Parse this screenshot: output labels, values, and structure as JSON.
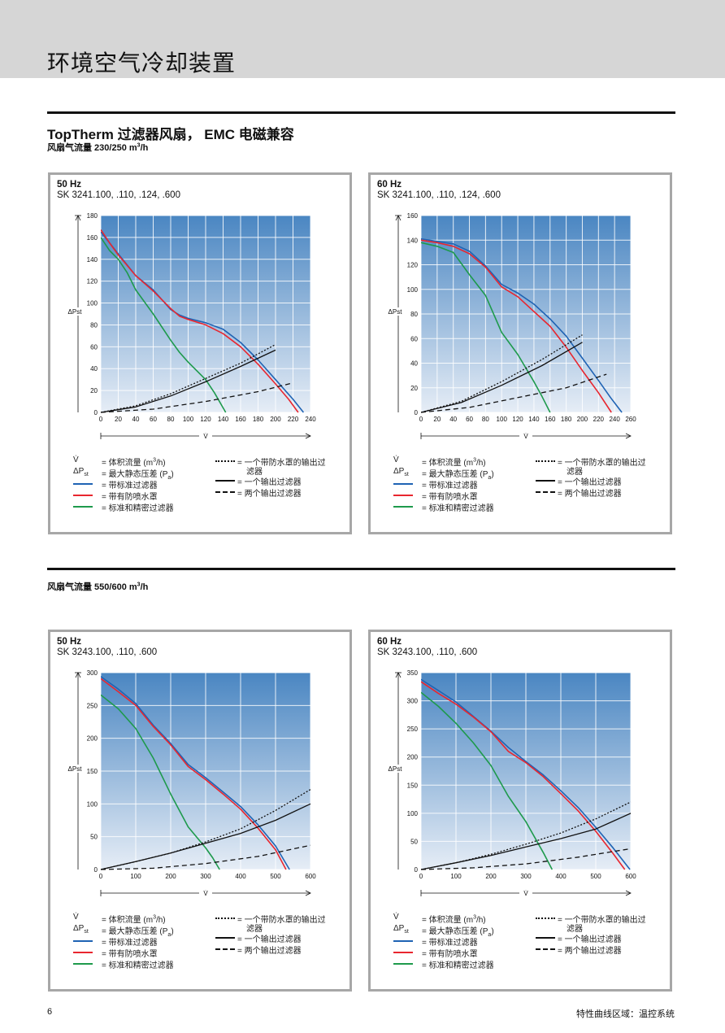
{
  "page": {
    "header_title": "环境空气冷却装置",
    "section1_title": "TopTherm 过滤器风扇， EMC 电磁兼容",
    "section1_sub_prefix": "风扇气流量 230/250 m",
    "section1_sub_sup": "3",
    "section1_sub_suffix": "/h",
    "section2_sub_prefix": "风扇气流量 550/600 m",
    "section2_sub_sup": "3",
    "section2_sub_suffix": "/h",
    "page_number": "6",
    "footer": "特性曲线区域：温控系统"
  },
  "legend": {
    "v_sym": "V̇",
    "v_desc_prefix": "= 体积流量 (m",
    "v_desc_sup": "3",
    "v_desc_suffix": "/h)",
    "dp_sym_prefix": "ΔP",
    "dp_sym_sub": "st",
    "dp_desc_prefix": "= 最大静态压差 (P",
    "dp_desc_sub": "a",
    "dp_desc_suffix": ")",
    "blue": "= 带标准过滤器",
    "red": "= 带有防喷水罩",
    "green": "= 标准和精密过滤器",
    "dotted_line1": "= 一个带防水罩的输出过",
    "dotted_line2": "滤器",
    "solid": "= 一个输出过滤器",
    "dashed": "= 两个输出过滤器"
  },
  "colors": {
    "blue": "#1f63b4",
    "red": "#e8262f",
    "green": "#1e9a4c",
    "black": "#111111",
    "plot_top": "#4a86c2",
    "plot_bottom": "#e6edf6"
  },
  "chart_data": [
    {
      "type": "line",
      "hz": "50 Hz",
      "model": "SK 3241.100, .110, .124, .600",
      "xlabel": "V̇",
      "ylabel": "ΔPst",
      "xlim": [
        0,
        240
      ],
      "ylim": [
        0,
        180
      ],
      "xticks": [
        0,
        20,
        40,
        60,
        80,
        100,
        120,
        140,
        160,
        180,
        200,
        220,
        240
      ],
      "yticks": [
        0,
        20,
        40,
        60,
        80,
        100,
        120,
        140,
        160,
        180
      ],
      "grid": true,
      "series": [
        {
          "color": "blue",
          "style": "solid",
          "x": [
            0,
            10,
            20,
            40,
            60,
            80,
            90,
            100,
            120,
            140,
            160,
            180,
            200,
            220,
            232
          ],
          "y": [
            165,
            155,
            145,
            125,
            112,
            94,
            89,
            86,
            82,
            76,
            64,
            48,
            30,
            12,
            0
          ]
        },
        {
          "color": "red",
          "style": "solid",
          "x": [
            0,
            10,
            20,
            40,
            60,
            80,
            90,
            100,
            120,
            140,
            160,
            180,
            200,
            215,
            226
          ],
          "y": [
            167,
            155,
            144,
            125,
            111,
            95,
            88,
            85,
            80,
            72,
            60,
            44,
            26,
            12,
            0
          ]
        },
        {
          "color": "green",
          "style": "solid",
          "x": [
            0,
            10,
            20,
            30,
            40,
            60,
            80,
            90,
            100,
            120,
            130,
            143
          ],
          "y": [
            160,
            148,
            140,
            128,
            112,
            90,
            66,
            55,
            46,
            30,
            18,
            0
          ]
        },
        {
          "color": "black",
          "style": "dotted",
          "x": [
            0,
            40,
            80,
            120,
            160,
            200
          ],
          "y": [
            0,
            6,
            17,
            31,
            45,
            62
          ]
        },
        {
          "color": "black",
          "style": "solid",
          "x": [
            0,
            40,
            80,
            120,
            160,
            200
          ],
          "y": [
            0,
            5,
            15,
            28,
            42,
            57
          ]
        },
        {
          "color": "black",
          "style": "dashed",
          "x": [
            0,
            60,
            120,
            180,
            220
          ],
          "y": [
            0,
            3,
            10,
            19,
            27
          ]
        }
      ]
    },
    {
      "type": "line",
      "hz": "60 Hz",
      "model": "SK 3241.100, .110, .124, .600",
      "xlabel": "V̇",
      "ylabel": "ΔPst",
      "xlim": [
        0,
        260
      ],
      "ylim": [
        0,
        160
      ],
      "xticks": [
        0,
        20,
        40,
        60,
        80,
        100,
        120,
        140,
        160,
        180,
        200,
        220,
        240,
        260
      ],
      "yticks": [
        0,
        20,
        40,
        60,
        80,
        100,
        120,
        140,
        160
      ],
      "grid": true,
      "series": [
        {
          "color": "blue",
          "style": "solid",
          "x": [
            0,
            20,
            40,
            60,
            80,
            100,
            120,
            140,
            160,
            180,
            200,
            220,
            235,
            249
          ],
          "y": [
            141,
            139,
            137,
            131,
            119,
            104,
            97,
            88,
            76,
            62,
            44,
            26,
            12,
            0
          ]
        },
        {
          "color": "red",
          "style": "solid",
          "x": [
            0,
            20,
            40,
            60,
            80,
            100,
            120,
            140,
            160,
            180,
            200,
            220,
            236
          ],
          "y": [
            140,
            138,
            135,
            129,
            118,
            102,
            94,
            82,
            70,
            53,
            34,
            16,
            0
          ]
        },
        {
          "color": "green",
          "style": "solid",
          "x": [
            0,
            20,
            40,
            60,
            80,
            100,
            120,
            140,
            150,
            160
          ],
          "y": [
            138,
            135,
            130,
            112,
            95,
            65,
            47,
            25,
            13,
            0
          ]
        },
        {
          "color": "black",
          "style": "dotted",
          "x": [
            0,
            50,
            100,
            150,
            200
          ],
          "y": [
            0,
            9,
            25,
            43,
            63
          ]
        },
        {
          "color": "black",
          "style": "solid",
          "x": [
            0,
            50,
            100,
            150,
            200
          ],
          "y": [
            0,
            8,
            22,
            38,
            57
          ]
        },
        {
          "color": "black",
          "style": "dashed",
          "x": [
            0,
            60,
            120,
            180,
            230
          ],
          "y": [
            0,
            4,
            12,
            20,
            31
          ]
        }
      ]
    },
    {
      "type": "line",
      "hz": "50 Hz",
      "model": "SK 3243.100, .110, .600",
      "xlabel": "V̇",
      "ylabel": "ΔPst",
      "xlim": [
        0,
        600
      ],
      "ylim": [
        0,
        300
      ],
      "xticks": [
        0,
        100,
        200,
        300,
        400,
        500,
        600
      ],
      "yticks": [
        0,
        50,
        100,
        150,
        200,
        250,
        300
      ],
      "grid": true,
      "series": [
        {
          "color": "blue",
          "style": "solid",
          "x": [
            0,
            50,
            100,
            150,
            200,
            250,
            300,
            350,
            400,
            450,
            500,
            540
          ],
          "y": [
            294,
            275,
            253,
            220,
            192,
            160,
            140,
            118,
            96,
            68,
            36,
            0
          ]
        },
        {
          "color": "red",
          "style": "solid",
          "x": [
            0,
            50,
            100,
            150,
            200,
            250,
            300,
            350,
            400,
            450,
            500,
            530
          ],
          "y": [
            291,
            271,
            250,
            218,
            190,
            157,
            137,
            115,
            92,
            63,
            30,
            0
          ]
        },
        {
          "color": "green",
          "style": "solid",
          "x": [
            0,
            50,
            100,
            150,
            200,
            250,
            300,
            320,
            340
          ],
          "y": [
            266,
            245,
            215,
            170,
            115,
            65,
            33,
            18,
            0
          ]
        },
        {
          "color": "black",
          "style": "dotted",
          "x": [
            0,
            100,
            200,
            300,
            400,
            500,
            600
          ],
          "y": [
            0,
            12,
            25,
            42,
            62,
            90,
            122
          ]
        },
        {
          "color": "black",
          "style": "solid",
          "x": [
            0,
            100,
            200,
            300,
            400,
            500,
            600
          ],
          "y": [
            0,
            12,
            25,
            40,
            55,
            75,
            100
          ]
        },
        {
          "color": "black",
          "style": "dashed",
          "x": [
            0,
            150,
            300,
            450,
            600
          ],
          "y": [
            0,
            2,
            9,
            20,
            37
          ]
        }
      ]
    },
    {
      "type": "line",
      "hz": "60 Hz",
      "model": "SK 3243.100, .110, .600",
      "xlabel": "V̇",
      "ylabel": "ΔPst",
      "xlim": [
        0,
        600
      ],
      "ylim": [
        0,
        350
      ],
      "xticks": [
        0,
        100,
        200,
        300,
        400,
        500,
        600
      ],
      "yticks": [
        0,
        50,
        100,
        150,
        200,
        250,
        300,
        350
      ],
      "grid": true,
      "series": [
        {
          "color": "blue",
          "style": "solid",
          "x": [
            0,
            50,
            100,
            150,
            200,
            250,
            300,
            350,
            400,
            450,
            500,
            550,
            598
          ],
          "y": [
            338,
            318,
            298,
            272,
            246,
            217,
            192,
            168,
            140,
            110,
            75,
            38,
            0
          ]
        },
        {
          "color": "red",
          "style": "solid",
          "x": [
            0,
            50,
            100,
            150,
            200,
            250,
            300,
            350,
            400,
            450,
            500,
            550,
            583
          ],
          "y": [
            334,
            313,
            294,
            271,
            245,
            210,
            190,
            165,
            135,
            104,
            68,
            28,
            0
          ]
        },
        {
          "color": "green",
          "style": "solid",
          "x": [
            0,
            50,
            100,
            150,
            200,
            250,
            300,
            350,
            375
          ],
          "y": [
            315,
            290,
            260,
            225,
            185,
            130,
            85,
            30,
            0
          ]
        },
        {
          "color": "black",
          "style": "dotted",
          "x": [
            0,
            100,
            200,
            300,
            400,
            500,
            600
          ],
          "y": [
            0,
            12,
            27,
            45,
            65,
            90,
            120
          ]
        },
        {
          "color": "black",
          "style": "solid",
          "x": [
            0,
            100,
            200,
            300,
            400,
            500,
            600
          ],
          "y": [
            0,
            12,
            25,
            40,
            55,
            72,
            100
          ]
        },
        {
          "color": "black",
          "style": "dashed",
          "x": [
            0,
            150,
            300,
            450,
            600
          ],
          "y": [
            0,
            3,
            10,
            22,
            37
          ]
        }
      ]
    }
  ]
}
